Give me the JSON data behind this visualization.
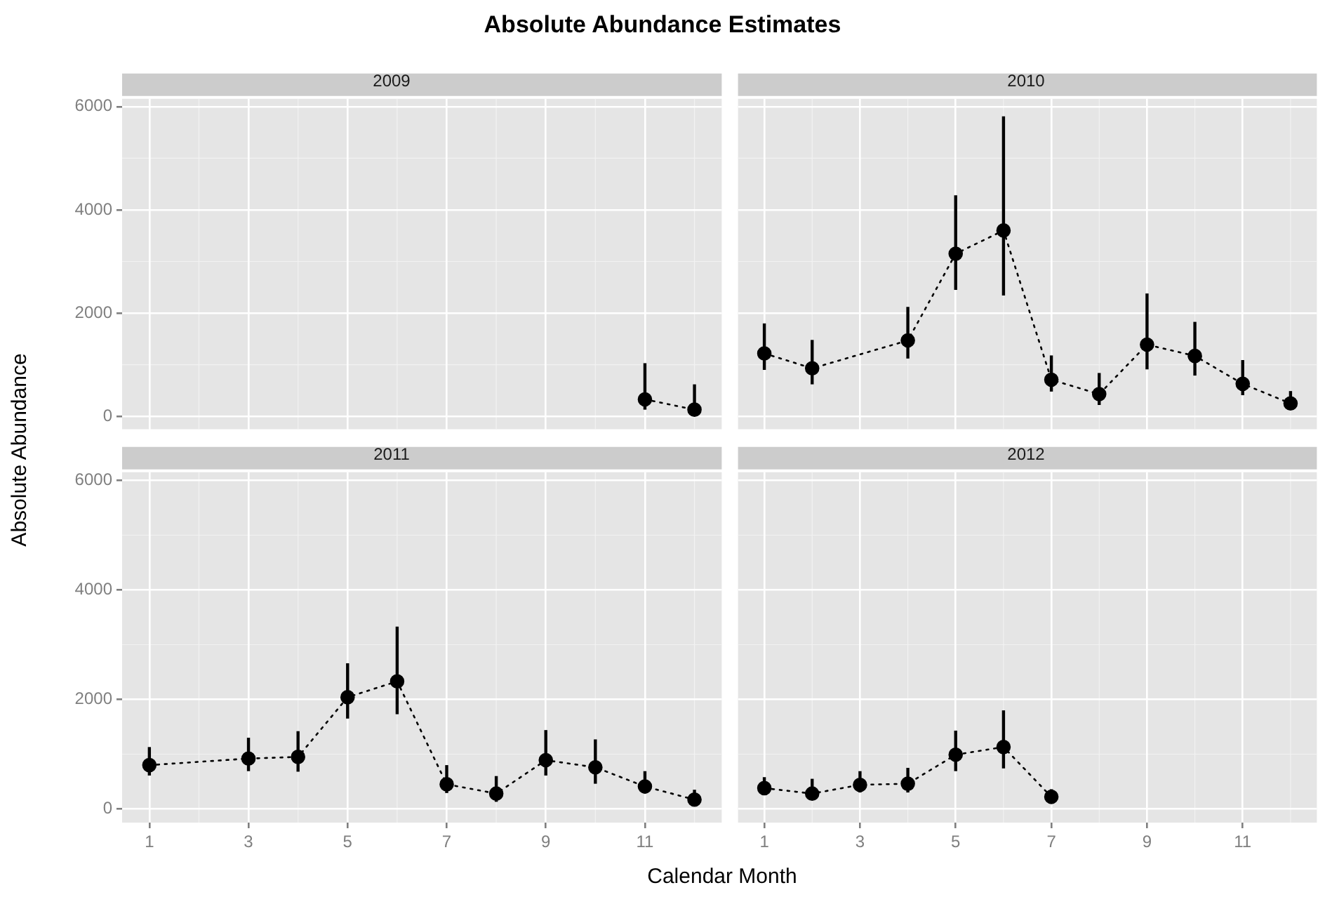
{
  "chart_data": [
    {
      "type": "line",
      "title": "2009",
      "annotations": [
        "Absolute Abundance Estimates"
      ],
      "ylabel": "Absolute Abundance",
      "x": [
        11,
        12
      ],
      "marker": "circle",
      "line_style": "dotted",
      "grid": true,
      "tick_labels": "y",
      "xlim": [
        0.45,
        12.55
      ],
      "xticks": [
        1,
        3,
        5,
        7,
        9,
        11
      ],
      "ylim": [
        -250,
        6150
      ],
      "yticks": [
        0,
        2000,
        4000,
        6000
      ],
      "series": [
        {
          "color": "#000000",
          "values": [
            330,
            130
          ],
          "errors": [
            [
              130,
              1030
            ],
            [
              120,
              620
            ]
          ]
        }
      ]
    },
    {
      "type": "line",
      "title": "2010",
      "x": [
        1,
        2,
        4,
        5,
        6,
        7,
        8,
        9,
        10,
        11,
        12
      ],
      "marker": "circle",
      "line_style": "dotted",
      "grid": true,
      "tick_labels": false,
      "xlim": [
        0.45,
        12.55
      ],
      "xticks": [
        1,
        3,
        5,
        7,
        9,
        11
      ],
      "ylim": [
        -250,
        6150
      ],
      "yticks": [
        0,
        2000,
        4000,
        6000
      ],
      "series": [
        {
          "color": "#000000",
          "values": [
            1220,
            930,
            1470,
            3150,
            3600,
            710,
            430,
            1390,
            1170,
            630,
            250
          ],
          "errors": [
            [
              900,
              1800
            ],
            [
              620,
              1480
            ],
            [
              1120,
              2120
            ],
            [
              2450,
              4280
            ],
            [
              2340,
              5810
            ],
            [
              480,
              1180
            ],
            [
              220,
              840
            ],
            [
              910,
              2380
            ],
            [
              790,
              1830
            ],
            [
              410,
              1090
            ],
            [
              190,
              490
            ]
          ]
        }
      ]
    },
    {
      "type": "line",
      "title": "2011",
      "xlabel": "Calendar Month",
      "x": [
        1,
        3,
        4,
        5,
        6,
        7,
        8,
        9,
        10,
        11,
        12
      ],
      "marker": "circle",
      "line_style": "dotted",
      "grid": true,
      "xlim": [
        0.45,
        12.55
      ],
      "xticks": [
        1,
        3,
        5,
        7,
        9,
        11
      ],
      "ylim": [
        -250,
        6150
      ],
      "yticks": [
        0,
        2000,
        4000,
        6000
      ],
      "series": [
        {
          "color": "#000000",
          "values": [
            800,
            920,
            950,
            2040,
            2330,
            450,
            280,
            890,
            760,
            410,
            170
          ],
          "errors": [
            [
              610,
              1130
            ],
            [
              690,
              1300
            ],
            [
              680,
              1420
            ],
            [
              1650,
              2660
            ],
            [
              1730,
              3330
            ],
            [
              290,
              800
            ],
            [
              130,
              600
            ],
            [
              610,
              1440
            ],
            [
              460,
              1270
            ],
            [
              280,
              690
            ],
            [
              90,
              350
            ]
          ]
        }
      ]
    },
    {
      "type": "line",
      "title": "2012",
      "x": [
        1,
        2,
        3,
        4,
        5,
        6,
        7
      ],
      "marker": "circle",
      "line_style": "dotted",
      "grid": true,
      "tick_labels": "x",
      "xlim": [
        0.45,
        12.55
      ],
      "xticks": [
        1,
        3,
        5,
        7,
        9,
        11
      ],
      "ylim": [
        -250,
        6150
      ],
      "yticks": [
        0,
        2000,
        4000,
        6000
      ],
      "series": [
        {
          "color": "#000000",
          "values": [
            380,
            280,
            440,
            460,
            990,
            1130,
            220
          ],
          "errors": [
            [
              290,
              580
            ],
            [
              190,
              550
            ],
            [
              300,
              690
            ],
            [
              300,
              750
            ],
            [
              690,
              1430
            ],
            [
              740,
              1800
            ],
            [
              130,
              360
            ]
          ]
        }
      ]
    }
  ]
}
